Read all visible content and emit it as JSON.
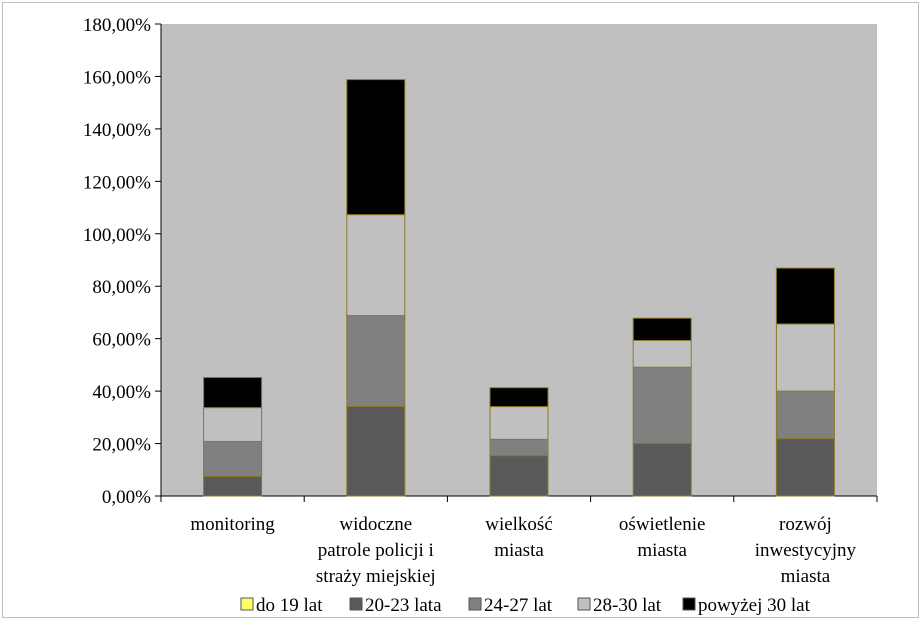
{
  "chart_data": {
    "type": "bar",
    "stacked": true,
    "title": "",
    "xlabel": "",
    "ylabel": "",
    "ylim": [
      0,
      180
    ],
    "y_ticks": [
      "0,00%",
      "20,00%",
      "40,00%",
      "60,00%",
      "80,00%",
      "100,00%",
      "120,00%",
      "140,00%",
      "160,00%",
      "180,00%"
    ],
    "y_tick_values": [
      0,
      20,
      40,
      60,
      80,
      100,
      120,
      140,
      160,
      180
    ],
    "grid": false,
    "legend_position": "bottom",
    "categories": [
      [
        "monitoring"
      ],
      [
        "widoczne",
        "patrole policji i",
        "straży miejskiej"
      ],
      [
        "wielkość",
        "miasta"
      ],
      [
        "oświetlenie",
        "miasta"
      ],
      [
        "rozwój",
        "inwestycyjny",
        "miasta"
      ]
    ],
    "series": [
      {
        "name": "do 19 lat",
        "color": "#ffff66",
        "values": [
          0,
          0,
          0,
          0,
          0
        ]
      },
      {
        "name": "20-23 lata",
        "color": "#595959",
        "values": [
          7.5,
          34.2,
          15.4,
          20.1,
          21.9
        ]
      },
      {
        "name": "24-27 lat",
        "color": "#808080",
        "values": [
          13.3,
          34.6,
          6.2,
          29.0,
          18.1
        ]
      },
      {
        "name": "28-30 lat",
        "color": "#c0c0c0",
        "values": [
          12.9,
          38.5,
          12.5,
          10.2,
          25.6
        ]
      },
      {
        "name": "powyżej 30 lat",
        "color": "#000000",
        "values": [
          11.5,
          51.5,
          7.2,
          8.5,
          21.3
        ]
      }
    ],
    "plot_background": "#c0c0c0",
    "segment_border": "#8a7a2a"
  }
}
